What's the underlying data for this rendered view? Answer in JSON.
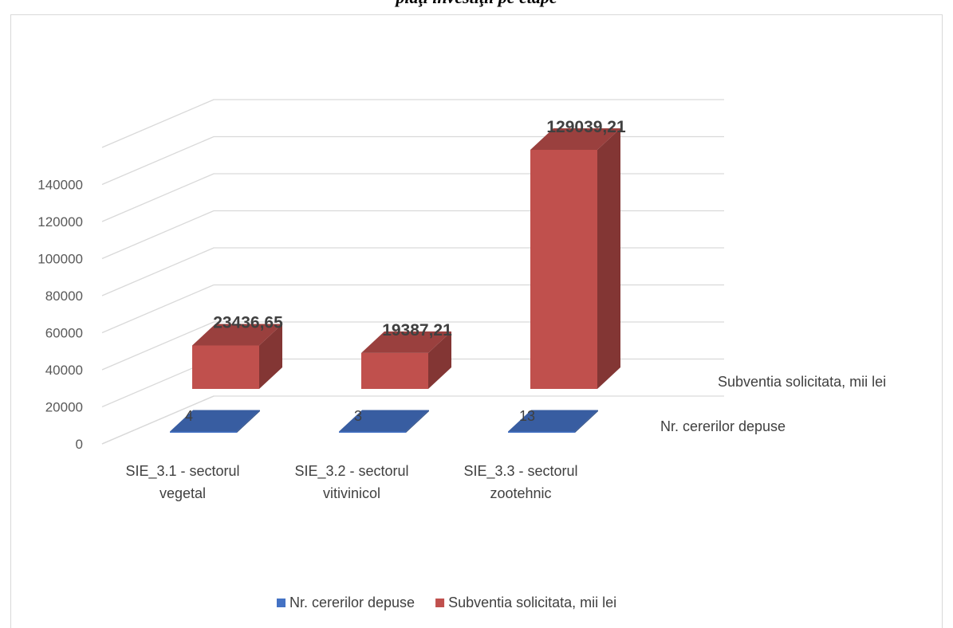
{
  "chart_data": {
    "type": "bar",
    "title": "piaţi investiţii pe etape",
    "categories": [
      [
        "SIE_3.1 - sectorul",
        "vegetal"
      ],
      [
        "SIE_3.2 - sectorul",
        "vitivinicol"
      ],
      [
        "SIE_3.3 - sectorul",
        "zootehnic"
      ]
    ],
    "series": [
      {
        "name": "Nr. cererilor depuse",
        "values": [
          4,
          3,
          13
        ],
        "labels": [
          "4",
          "3",
          "13"
        ],
        "color": "#4472c4"
      },
      {
        "name": "Subventia solicitata, mii lei",
        "values": [
          23436.65,
          19387.21,
          129039.21
        ],
        "labels": [
          "23436,65",
          "19387,21",
          "129039,21"
        ],
        "color": "#c0504d"
      }
    ],
    "yticks": [
      0,
      20000,
      40000,
      60000,
      80000,
      100000,
      120000,
      140000
    ],
    "ylim": [
      0,
      160000
    ],
    "grid": true,
    "legend": "bottom",
    "style": "3d-column"
  }
}
